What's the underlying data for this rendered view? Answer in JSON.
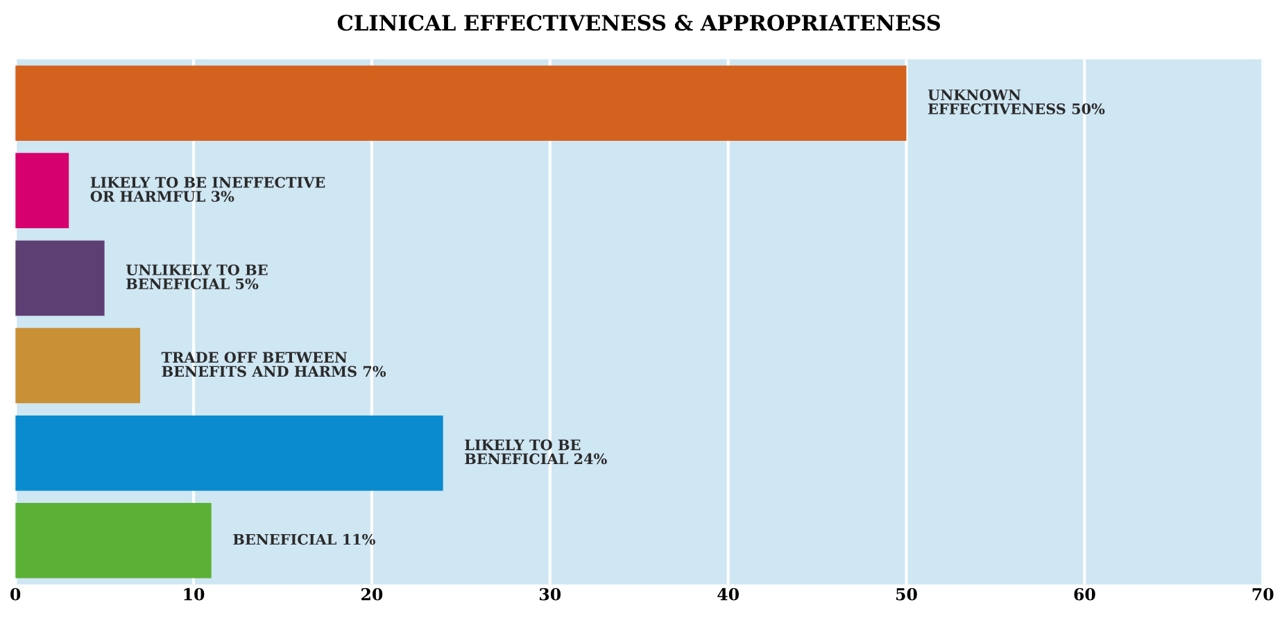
{
  "chart_data": {
    "type": "bar",
    "orientation": "horizontal",
    "title": "CLINICAL EFFECTIVENESS & APPROPRIATENESS",
    "categories": [
      "UNKNOWN\nEFFECTIVENESS",
      "LIKELY TO BE INEFFECTIVE\nOR HARMFUL",
      "UNLIKELY TO BE\nBENEFICIAL",
      "TRADE OFF BETWEEN\nBENEFITS AND HARMS",
      "LIKELY TO BE\nBENEFICIAL",
      "BENEFICIAL"
    ],
    "values": [
      50,
      3,
      5,
      7,
      24,
      11
    ],
    "value_labels": [
      "50%",
      "3%",
      "5%",
      "7%",
      "24%",
      "11%"
    ],
    "colors": [
      "#d4621f",
      "#d6006e",
      "#5e3f74",
      "#c99035",
      "#0a8bd0",
      "#5bb135"
    ],
    "xlim": [
      0,
      70
    ],
    "xticks": [
      0,
      10,
      20,
      30,
      40,
      50,
      60,
      70
    ],
    "grid": "x",
    "tick_labels": "x"
  }
}
